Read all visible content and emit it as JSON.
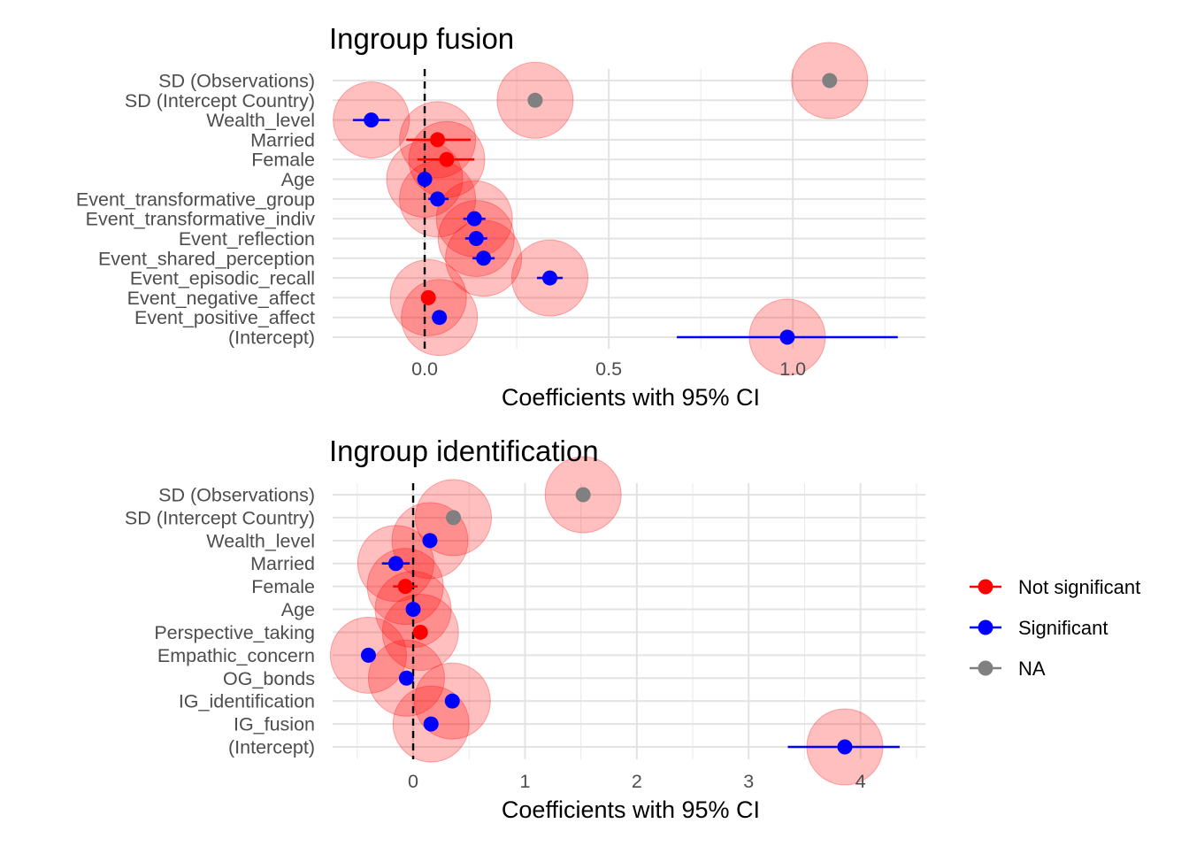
{
  "colors": {
    "not_significant": "#FF0000",
    "significant": "#0000FF",
    "na": "#808080",
    "halo": "#FF0000"
  },
  "legend": {
    "position": "right",
    "items": [
      {
        "label": "Not significant",
        "color": "#FF0000"
      },
      {
        "label": "Significant",
        "color": "#0000FF"
      },
      {
        "label": "NA",
        "color": "#808080"
      }
    ]
  },
  "chart_data": [
    {
      "type": "scatter",
      "subtype": "coefficient plot with 95% CI",
      "title": "Ingroup fusion",
      "xlabel": "Coefficients with 95% CI",
      "ylabel": "",
      "xlim": [
        -0.25,
        1.36
      ],
      "xticks": [
        0.0,
        0.5,
        1.0
      ],
      "xtick_labels": [
        "0.0",
        "0.5",
        "1.0"
      ],
      "reference_line": 0,
      "grid": true,
      "points": [
        {
          "term": "SD (Observations)",
          "estimate": 1.1,
          "ci": null,
          "status": "na"
        },
        {
          "term": "SD (Intercept Country)",
          "estimate": 0.3,
          "ci": null,
          "status": "na"
        },
        {
          "term": "Wealth_level",
          "estimate": -0.145,
          "ci": [
            -0.195,
            -0.095
          ],
          "status": "significant"
        },
        {
          "term": "Married",
          "estimate": 0.035,
          "ci": [
            -0.05,
            0.125
          ],
          "status": "not_significant"
        },
        {
          "term": "Female",
          "estimate": 0.06,
          "ci": [
            -0.02,
            0.135
          ],
          "status": "not_significant"
        },
        {
          "term": "Age",
          "estimate": 0.0,
          "ci": [
            -0.01,
            0.01
          ],
          "status": "significant"
        },
        {
          "term": "Event_transformative_group",
          "estimate": 0.035,
          "ci": [
            0.01,
            0.065
          ],
          "status": "significant"
        },
        {
          "term": "Event_transformative_indiv",
          "estimate": 0.135,
          "ci": [
            0.105,
            0.165
          ],
          "status": "significant"
        },
        {
          "term": "Event_reflection",
          "estimate": 0.14,
          "ci": [
            0.11,
            0.17
          ],
          "status": "significant"
        },
        {
          "term": "Event_shared_perception",
          "estimate": 0.16,
          "ci": [
            0.13,
            0.19
          ],
          "status": "significant"
        },
        {
          "term": "Event_episodic_recall",
          "estimate": 0.34,
          "ci": [
            0.305,
            0.375
          ],
          "status": "significant"
        },
        {
          "term": "Event_negative_affect",
          "estimate": 0.01,
          "ci": [
            -0.005,
            0.025
          ],
          "status": "not_significant"
        },
        {
          "term": "Event_positive_affect",
          "estimate": 0.04,
          "ci": [
            0.02,
            0.06
          ],
          "status": "significant"
        },
        {
          "term": "(Intercept)",
          "estimate": 0.985,
          "ci": [
            0.685,
            1.285
          ],
          "status": "significant"
        }
      ]
    },
    {
      "type": "scatter",
      "subtype": "coefficient plot with 95% CI",
      "title": "Ingroup identification",
      "xlabel": "Coefficients with 95% CI",
      "ylabel": "",
      "xlim": [
        -0.72,
        4.58
      ],
      "xticks": [
        0,
        1,
        2,
        3,
        4
      ],
      "xtick_labels": [
        "0",
        "1",
        "2",
        "3",
        "4"
      ],
      "reference_line": 0,
      "grid": true,
      "points": [
        {
          "term": "SD (Observations)",
          "estimate": 1.52,
          "ci": null,
          "status": "na"
        },
        {
          "term": "SD (Intercept Country)",
          "estimate": 0.36,
          "ci": null,
          "status": "na"
        },
        {
          "term": "Wealth_level",
          "estimate": 0.15,
          "ci": [
            0.12,
            0.18
          ],
          "status": "significant"
        },
        {
          "term": "Married",
          "estimate": -0.155,
          "ci": [
            -0.28,
            -0.03
          ],
          "status": "significant"
        },
        {
          "term": "Female",
          "estimate": -0.07,
          "ci": [
            -0.18,
            0.04
          ],
          "status": "not_significant"
        },
        {
          "term": "Age",
          "estimate": 0.0,
          "ci": [
            -0.02,
            0.02
          ],
          "status": "significant"
        },
        {
          "term": "Perspective_taking",
          "estimate": 0.065,
          "ci": [
            0.04,
            0.09
          ],
          "status": "not_significant"
        },
        {
          "term": "Empathic_concern",
          "estimate": -0.4,
          "ci": [
            -0.43,
            -0.37
          ],
          "status": "significant"
        },
        {
          "term": "OG_bonds",
          "estimate": -0.06,
          "ci": [
            -0.09,
            -0.03
          ],
          "status": "significant"
        },
        {
          "term": "IG_identification",
          "estimate": 0.35,
          "ci": [
            0.32,
            0.38
          ],
          "status": "significant"
        },
        {
          "term": "IG_fusion",
          "estimate": 0.16,
          "ci": [
            0.13,
            0.19
          ],
          "status": "significant"
        },
        {
          "term": "(Intercept)",
          "estimate": 3.86,
          "ci": [
            3.35,
            4.35
          ],
          "status": "significant"
        }
      ]
    }
  ]
}
